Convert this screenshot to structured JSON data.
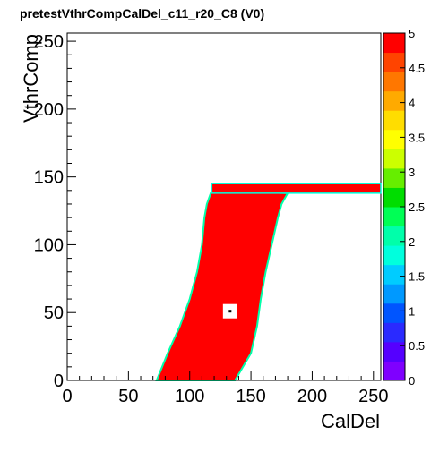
{
  "chart_data": {
    "type": "heatmap",
    "title": "pretestVthrCompCalDel_c11_r20_C8 (V0)",
    "xlabel": "CalDel",
    "ylabel": "VthrComp",
    "xlim": [
      0,
      256
    ],
    "ylim": [
      0,
      256
    ],
    "x_ticks": [
      0,
      50,
      100,
      150,
      200,
      250
    ],
    "y_ticks": [
      0,
      50,
      100,
      150,
      200,
      250
    ],
    "zlim": [
      0,
      5
    ],
    "z_ticks": [
      "0",
      "0.5",
      "1",
      "1.5",
      "2",
      "2.5",
      "3",
      "3.5",
      "4",
      "4.5",
      "5"
    ],
    "palette": [
      "#7f00ff",
      "#5500ff",
      "#2a2aff",
      "#0055ff",
      "#0099ff",
      "#00ccff",
      "#00ffdd",
      "#00ffaa",
      "#00ff55",
      "#00dd00",
      "#66ee00",
      "#ccff00",
      "#ffff00",
      "#ffdd00",
      "#ffaa00",
      "#ff7700",
      "#ff4400",
      "#ff0000"
    ],
    "saturated_value": 5,
    "region": {
      "value": 5,
      "left_edge": [
        [
          0,
          73
        ],
        [
          20,
          82
        ],
        [
          40,
          92
        ],
        [
          60,
          100
        ],
        [
          80,
          106
        ],
        [
          100,
          110
        ],
        [
          120,
          112
        ],
        [
          130,
          114
        ],
        [
          140,
          118
        ]
      ],
      "right_edge": [
        [
          0,
          137
        ],
        [
          20,
          150
        ],
        [
          40,
          155
        ],
        [
          60,
          158
        ],
        [
          80,
          162
        ],
        [
          100,
          167
        ],
        [
          120,
          172
        ],
        [
          130,
          175
        ],
        [
          138,
          180
        ]
      ],
      "plateau": {
        "y_bottom": 138,
        "y_top": 145,
        "x_start": 118,
        "x_end": 256
      },
      "hole": {
        "x": 133,
        "y": 51,
        "size": 8
      }
    }
  }
}
